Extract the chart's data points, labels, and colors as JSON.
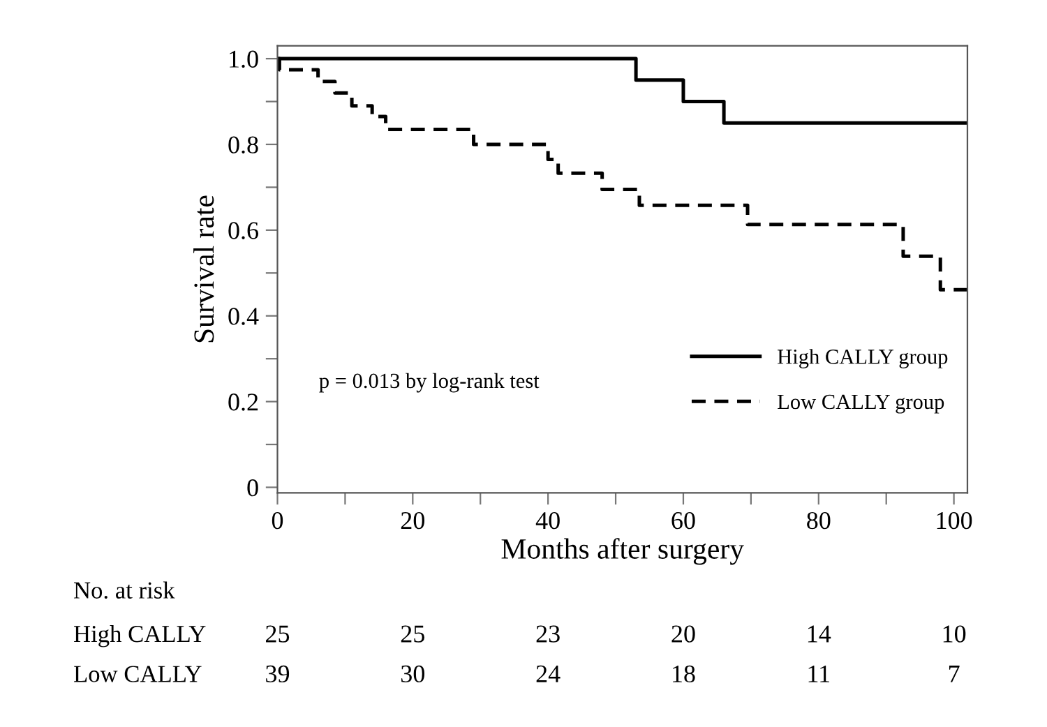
{
  "chart_data": {
    "type": "step",
    "xlabel": "Months after surgery",
    "ylabel": "Survival rate",
    "xlim": [
      0,
      102
    ],
    "ylim": [
      -0.013,
      1.03
    ],
    "xticks": [
      0,
      {
        "value": 10,
        "label": null
      },
      20,
      {
        "value": 30,
        "label": null
      },
      40,
      {
        "value": 50,
        "label": null
      },
      60,
      {
        "value": 70,
        "label": null
      },
      80,
      {
        "value": 90,
        "label": null
      },
      100
    ],
    "yticks": [
      0,
      {
        "value": 0.1,
        "label": null
      },
      0.2,
      {
        "value": 0.3,
        "label": null
      },
      0.4,
      {
        "value": 0.5,
        "label": null
      },
      0.6,
      {
        "value": 0.7,
        "label": null
      },
      0.8,
      {
        "value": 0.9,
        "label": null
      },
      {
        "value": 1,
        "label": "1.0"
      }
    ],
    "grid": false,
    "legend": "right",
    "marker": "none",
    "series": [
      {
        "name": "High CALLY group",
        "color": "#000000",
        "line_style": "solid",
        "x": [
          0,
          53,
          60,
          66,
          102
        ],
        "values": [
          1.0,
          0.95,
          0.9,
          0.85,
          0.85
        ]
      },
      {
        "name": "Low CALLY group",
        "color": "#000000",
        "line_style": "dashed",
        "x": [
          0,
          0.3,
          6,
          8.5,
          11,
          14,
          16,
          29,
          40,
          41.5,
          48,
          53.5,
          69.5,
          92.5,
          98,
          102
        ],
        "values": [
          1.0,
          0.974,
          0.947,
          0.92,
          0.89,
          0.865,
          0.835,
          0.8,
          0.765,
          0.733,
          0.695,
          0.658,
          0.613,
          0.539,
          0.461,
          0.461
        ]
      }
    ],
    "annotations": [
      "p = 0.013 by log-rank test",
      "No. at risk",
      "High CALLY",
      "25",
      "25",
      "23",
      "20",
      "14",
      "10",
      "Low CALLY",
      "39",
      "30",
      "24",
      "18",
      "11",
      "7"
    ]
  }
}
